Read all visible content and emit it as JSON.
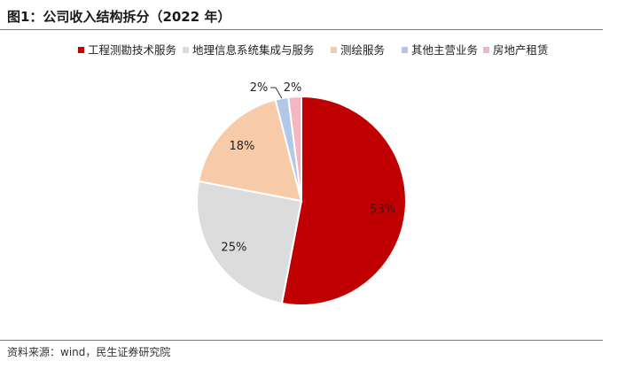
{
  "header": {
    "title": "图1：公司收入结构拆分（2022 年）"
  },
  "footer": {
    "source": "资料来源：wind，民生证券研究院"
  },
  "chart_data": {
    "type": "pie",
    "title": "",
    "legend_position": "top",
    "slices": [
      {
        "name": "工程测勘技术服务",
        "value": 53,
        "label": "53%",
        "color": "#c00000"
      },
      {
        "name": "地理信息系统集成与服务",
        "value": 25,
        "label": "25%",
        "color": "#dcdcdc"
      },
      {
        "name": "测绘服务",
        "value": 18,
        "label": "18%",
        "color": "#f8cba8"
      },
      {
        "name": "其他主营业务",
        "value": 2,
        "label": "2%",
        "color": "#b4c7e7"
      },
      {
        "name": "房地产租赁",
        "value": 2,
        "label": "2%",
        "color": "#f4b6c0"
      }
    ]
  }
}
